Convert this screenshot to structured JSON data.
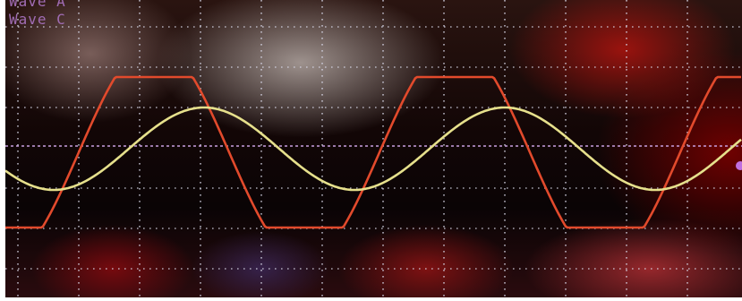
{
  "screen": {
    "labels": [
      "Wave A",
      "Wave C"
    ]
  },
  "waves": [
    {
      "color": "#e24a2c",
      "shape": "clipped-sine"
    },
    {
      "color": "#e6e08c",
      "shape": "sine"
    }
  ],
  "colors": {
    "grid": "#d8d8e8",
    "reference": "#c8a0e0",
    "marker": "#c070e0"
  }
}
